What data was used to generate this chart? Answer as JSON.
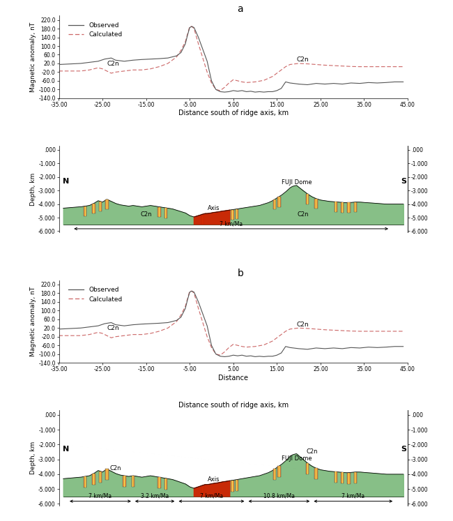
{
  "fig_width": 6.5,
  "fig_height": 7.47,
  "panel_a_label": "a",
  "panel_b_label": "b",
  "mag_ylabel": "Magnetic anomaly, nT",
  "mag_xlabel_a": "Distance south of ridge axis, km",
  "mag_xlabel_b_axis": "Distance",
  "mag_xlabel_b_full": "Distance south of ridge axis, km",
  "depth_ylabel": "Depth, km",
  "xlim": [
    -35,
    45
  ],
  "xticks": [
    -35,
    -25,
    -15,
    -5,
    5,
    15,
    25,
    35,
    45
  ],
  "xtick_labels": [
    "-35.00",
    "-25.00",
    "-15.00",
    "-5.00",
    "5.00",
    "15.00",
    "25.00",
    "35.00",
    "45.00"
  ],
  "ylim_mag": [
    -140,
    240
  ],
  "yticks_mag": [
    -140,
    -100,
    -60,
    -20,
    20,
    60,
    100,
    140,
    180,
    220
  ],
  "ytick_labels_mag": [
    "-140.0",
    "-100.0",
    "-60.0",
    "-20.0",
    "20.0",
    "60.0",
    "100.0",
    "140.0",
    "180.0",
    "220.0"
  ],
  "ylim_depth": [
    -6.1,
    0.3
  ],
  "yticks_depth": [
    0.0,
    -1.0,
    -2.0,
    -3.0,
    -4.0,
    -5.0,
    -6.0
  ],
  "ytick_labels_depth": [
    ".000",
    "-1.000",
    "-2.000",
    "-3.000",
    "-4.000",
    "-5.000",
    "-6.000"
  ],
  "observed_color": "#555555",
  "calculated_color": "#cc6666",
  "green_color": "#7ab87a",
  "orange_color": "#e8963c",
  "red_color": "#cc2200"
}
